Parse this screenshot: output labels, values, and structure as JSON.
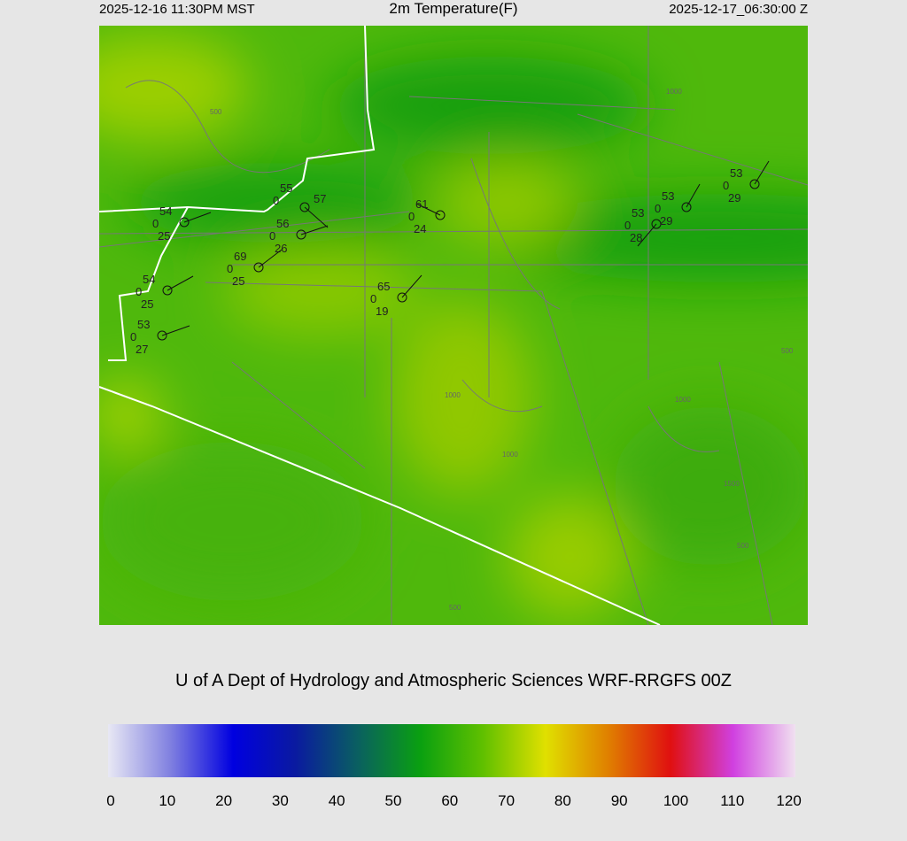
{
  "header": {
    "local_time": "2025-12-16 11:30PM MST",
    "title": "2m Temperature(F)",
    "valid_time": "2025-12-17_06:30:00 Z"
  },
  "credit": "U of A Dept of Hydrology and Atmospheric Sciences WRF-RRGFS 00Z",
  "map": {
    "field": "2m Temperature",
    "units": "F",
    "contour_labels": [
      "500",
      "1000",
      "1000",
      "500",
      "1000",
      "1000",
      "1500",
      "500",
      "500"
    ],
    "stations": [
      {
        "temp": "54",
        "mid": "0",
        "dew": "25"
      },
      {
        "temp": "55",
        "mid": "0",
        "dew": "57"
      },
      {
        "temp": "56",
        "mid": "0",
        "dew": "26"
      },
      {
        "temp": "69",
        "mid": "0",
        "dew": "25"
      },
      {
        "temp": "54",
        "mid": "0",
        "dew": "25"
      },
      {
        "temp": "53",
        "mid": "0",
        "dew": "27"
      },
      {
        "temp": "61",
        "mid": "0",
        "dew": "24"
      },
      {
        "temp": "65",
        "mid": "0",
        "dew": "19"
      },
      {
        "temp": "53",
        "mid": "0",
        "dew": "28"
      },
      {
        "temp": "53",
        "mid": "0",
        "dew": "29"
      },
      {
        "temp": "53",
        "mid": "0",
        "dew": "29"
      }
    ]
  },
  "colorbar": {
    "ticks": [
      "0",
      "10",
      "20",
      "30",
      "40",
      "50",
      "60",
      "70",
      "80",
      "90",
      "100",
      "110",
      "120"
    ],
    "range": [
      0,
      120
    ],
    "colors": [
      "#e8e8f4",
      "#8080e0",
      "#0000e0",
      "#0a1aa0",
      "#0a6060",
      "#0aa010",
      "#60c000",
      "#e0e000",
      "#e08000",
      "#e01010",
      "#d040e0",
      "#f0e0f0"
    ]
  }
}
